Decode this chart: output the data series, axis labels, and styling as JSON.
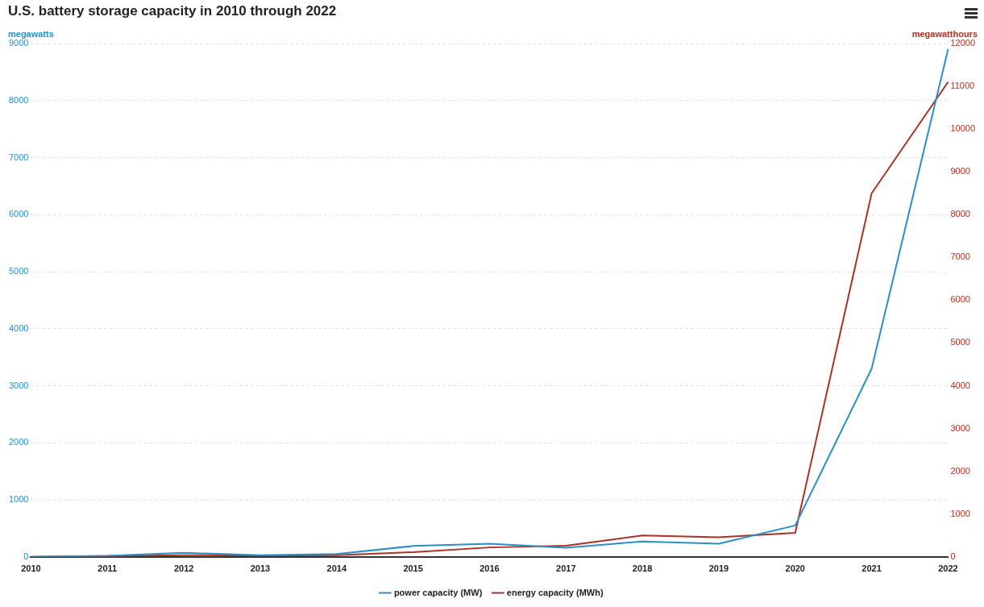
{
  "chart_data": {
    "type": "line",
    "title": "U.S. battery storage capacity in 2010 through 2022",
    "ylabel": "megawatts",
    "y2label": "megawatthours",
    "categories": [
      "2010",
      "2011",
      "2012",
      "2013",
      "2014",
      "2015",
      "2016",
      "2017",
      "2018",
      "2019",
      "2020",
      "2021",
      "2022"
    ],
    "series": [
      {
        "name": "power capacity (MW)",
        "color": "#2a8fc6",
        "values": [
          0,
          20,
          70,
          30,
          50,
          190,
          230,
          160,
          270,
          230,
          550,
          3300,
          8900
        ]
      },
      {
        "name": "energy capacity (MWh)",
        "color": "#a93226",
        "axis": "y2",
        "values": [
          0,
          20,
          40,
          30,
          40,
          110,
          220,
          260,
          500,
          460,
          560,
          8500,
          11100
        ]
      }
    ],
    "ylim": [
      0,
      9000
    ],
    "yticks": [
      0,
      1000,
      2000,
      3000,
      4000,
      5000,
      6000,
      7000,
      8000,
      9000
    ],
    "y2lim": [
      0,
      12000
    ],
    "y2ticks": [
      0,
      1000,
      2000,
      3000,
      4000,
      5000,
      6000,
      7000,
      8000,
      9000,
      10000,
      11000,
      12000
    ],
    "grid": "y",
    "legend": "bottom",
    "marker": "none",
    "line_style": "solid"
  }
}
